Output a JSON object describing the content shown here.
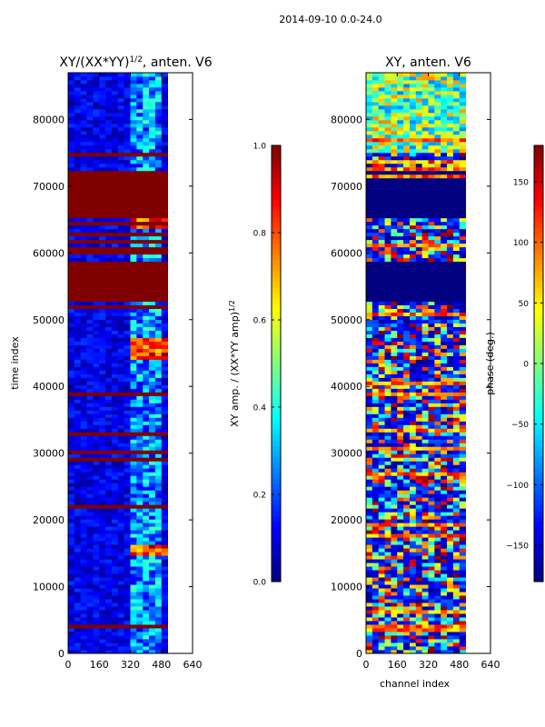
{
  "figure": {
    "suptitle": "2014-09-10 0.0-24.0"
  },
  "chart_data": [
    {
      "type": "heatmap",
      "title_main": "XY/(XX*YY)",
      "title_sup": "1/2",
      "title_suffix": ", anten. V6",
      "xlabel": "",
      "ylabel": "time index",
      "xlim": [
        0,
        640
      ],
      "ylim": [
        0,
        87000
      ],
      "xticks": [
        0,
        160,
        320,
        480,
        640
      ],
      "yticks": [
        0,
        10000,
        20000,
        30000,
        40000,
        50000,
        60000,
        70000,
        80000
      ],
      "data_channel_max": 512,
      "colormap": "jet",
      "colorbar": {
        "label_main": "XY amp. / (XX*YY amp)",
        "label_sup": "1/2",
        "range": [
          0.0,
          1.0
        ],
        "ticks": [
          "0.0",
          "0.2",
          "0.4",
          "0.6",
          "0.8",
          "1.0"
        ]
      },
      "saturated_bands": [
        [
          52800,
          58500
        ],
        [
          59800,
          61000
        ],
        [
          65200,
          72300
        ]
      ],
      "bright_bands": [
        [
          63500,
          65100
        ],
        [
          44000,
          47500
        ],
        [
          14500,
          16500
        ]
      ],
      "channel_band": [
        320,
        480
      ]
    },
    {
      "type": "heatmap",
      "title_main": "XY, anten. V6",
      "title_sup": "",
      "title_suffix": "",
      "xlabel": "channel index",
      "ylabel": "",
      "xlim": [
        0,
        640
      ],
      "ylim": [
        0,
        87000
      ],
      "xticks": [
        0,
        160,
        320,
        480,
        640
      ],
      "yticks": [
        0,
        10000,
        20000,
        30000,
        40000,
        50000,
        60000,
        70000,
        80000
      ],
      "data_channel_max": 512,
      "colormap": "jet",
      "colorbar": {
        "label_main": "phase (deg.)",
        "label_sup": "",
        "range": [
          -180,
          180
        ],
        "ticks": [
          "−150",
          "−100",
          "−50",
          "0",
          "50",
          "100",
          "150"
        ],
        "tick_values": [
          -150,
          -100,
          -50,
          0,
          50,
          100,
          150
        ]
      },
      "uniform_bands": [
        [
          52800,
          58500
        ],
        [
          65200,
          72300
        ]
      ],
      "channel_band": [
        320,
        480
      ]
    }
  ],
  "colors": {
    "jet_low": "#00007f",
    "jet_high": "#7f0000",
    "axis": "#000000",
    "background": "#ffffff"
  }
}
